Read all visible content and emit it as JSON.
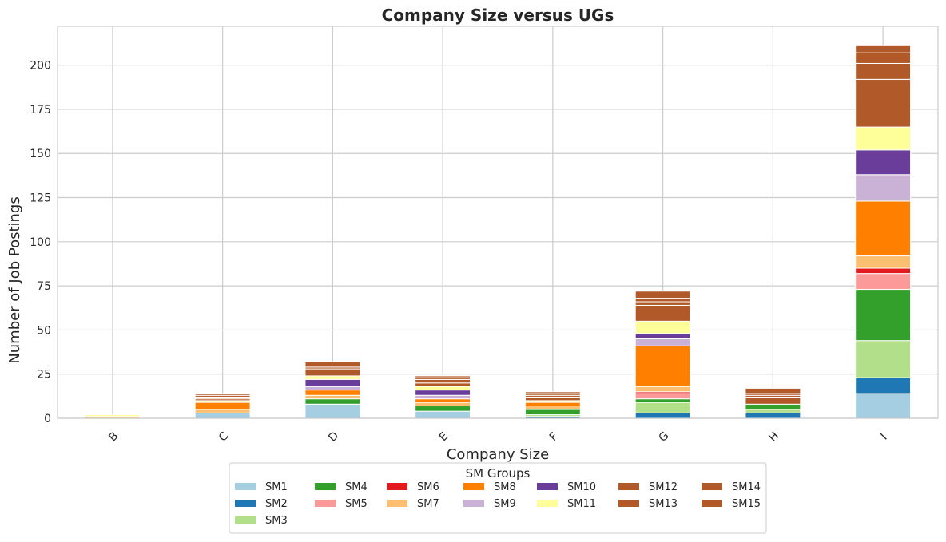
{
  "chart_data": {
    "type": "bar",
    "stacked": true,
    "title": "Company Size versus UGs",
    "xlabel": "Company Size",
    "ylabel": "Number of Job Postings",
    "categories": [
      "B",
      "C",
      "D",
      "E",
      "F",
      "G",
      "H",
      "I"
    ],
    "ylim": [
      0,
      222
    ],
    "yticks": [
      0,
      25,
      50,
      75,
      100,
      125,
      150,
      175,
      200
    ],
    "grid": true,
    "legend": {
      "title": "SM Groups",
      "placement": "bottom-center",
      "columns": 7
    },
    "series": [
      {
        "name": "SM1",
        "color": "#a6cee3",
        "values": [
          0,
          3,
          8,
          4,
          0,
          0,
          0,
          14
        ]
      },
      {
        "name": "SM2",
        "color": "#1f78b4",
        "values": [
          0,
          0,
          0,
          0,
          1,
          3,
          3,
          9
        ]
      },
      {
        "name": "SM3",
        "color": "#b2df8a",
        "values": [
          0,
          0,
          0,
          0,
          1,
          6,
          2,
          21
        ]
      },
      {
        "name": "SM4",
        "color": "#33a02c",
        "values": [
          0,
          0,
          3,
          3,
          3,
          2,
          3,
          29
        ]
      },
      {
        "name": "SM5",
        "color": "#fb9a99",
        "values": [
          0,
          0,
          0,
          0,
          0,
          3,
          0,
          9
        ]
      },
      {
        "name": "SM6",
        "color": "#e31a1c",
        "values": [
          0,
          0,
          0,
          0,
          0,
          1,
          0,
          3
        ]
      },
      {
        "name": "SM7",
        "color": "#fdbf6f",
        "values": [
          1,
          2,
          2,
          2,
          2,
          3,
          0,
          7
        ]
      },
      {
        "name": "SM8",
        "color": "#ff7f00",
        "values": [
          0,
          4,
          3,
          2,
          2,
          23,
          0,
          31
        ]
      },
      {
        "name": "SM9",
        "color": "#cab2d6",
        "values": [
          0,
          0,
          2,
          2,
          0,
          4,
          0,
          15
        ]
      },
      {
        "name": "SM10",
        "color": "#6a3d9a",
        "values": [
          0,
          0,
          4,
          3,
          0,
          3,
          0,
          14
        ]
      },
      {
        "name": "SM11",
        "color": "#ffff99",
        "values": [
          1,
          1,
          2,
          2,
          1,
          7,
          0,
          13
        ]
      },
      {
        "name": "SM12",
        "color": "#b15928",
        "values": [
          0,
          1,
          4,
          2,
          2,
          9,
          4,
          27
        ]
      },
      {
        "name": "SM13",
        "color": "#b15928",
        "values": [
          0,
          1,
          1,
          2,
          1,
          2,
          1,
          9
        ]
      },
      {
        "name": "SM14",
        "color": "#b15928",
        "values": [
          0,
          1,
          0,
          1,
          1,
          2,
          1,
          6
        ]
      },
      {
        "name": "SM15",
        "color": "#b15928",
        "values": [
          0,
          1,
          3,
          1,
          1,
          4,
          3,
          4
        ]
      }
    ]
  }
}
